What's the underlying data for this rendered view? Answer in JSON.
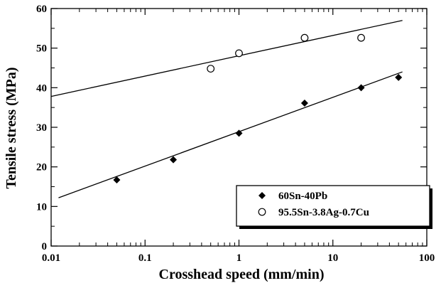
{
  "chart_data": {
    "type": "scatter",
    "xlabel": "Crosshead speed (mm/min)",
    "ylabel": "Tensile stress (MPa)",
    "xscale": "log",
    "xlim": [
      0.01,
      100
    ],
    "ylim": [
      0,
      60
    ],
    "xticks": [
      0.01,
      0.1,
      1,
      10,
      100
    ],
    "xtick_labels": [
      "0.01",
      "0.1",
      "1",
      "10",
      "100"
    ],
    "yticks": [
      0,
      10,
      20,
      30,
      40,
      50,
      60
    ],
    "ytick_labels": [
      "0",
      "10",
      "20",
      "30",
      "40",
      "50",
      "60"
    ],
    "grid": false,
    "legend_position": "bottom-right",
    "series": [
      {
        "name": "60Sn-40Pb",
        "marker": "filled-diamond",
        "color": "#000000",
        "points": [
          {
            "x": 0.05,
            "y": 16.7
          },
          {
            "x": 0.2,
            "y": 21.8
          },
          {
            "x": 1,
            "y": 28.5
          },
          {
            "x": 5,
            "y": 36.1
          },
          {
            "x": 20,
            "y": 40.0
          },
          {
            "x": 50,
            "y": 42.6
          }
        ],
        "fit_line": {
          "x": [
            0.012,
            55
          ],
          "y": [
            12.2,
            44.0
          ]
        }
      },
      {
        "name": "95.5Sn-3.8Ag-0.7Cu",
        "marker": "open-circle",
        "color": "#000000",
        "points": [
          {
            "x": 0.5,
            "y": 44.8
          },
          {
            "x": 1,
            "y": 48.7
          },
          {
            "x": 5,
            "y": 52.6
          },
          {
            "x": 20,
            "y": 52.6
          }
        ],
        "fit_line": {
          "x": [
            0.01,
            55
          ],
          "y": [
            37.8,
            57.0
          ]
        }
      }
    ]
  }
}
